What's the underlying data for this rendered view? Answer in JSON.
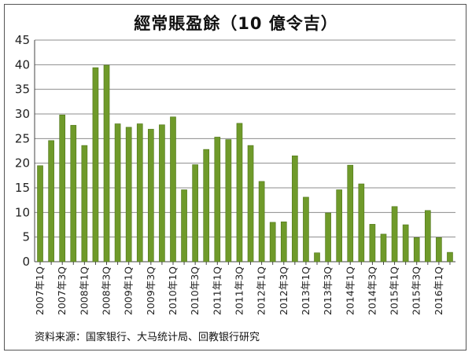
{
  "chart_data": {
    "type": "bar",
    "title": "經常賬盈餘（10 億令吉）",
    "source": "资料来源：国家银行、大马统计局、回教银行研究",
    "ylim": [
      0,
      45
    ],
    "yticks": [
      0,
      5,
      10,
      15,
      20,
      25,
      30,
      35,
      40,
      45
    ],
    "grid": true,
    "legend": "none",
    "bar_color": "#6f9a2a",
    "categories": [
      "2007年1Q",
      "2007年2Q",
      "2007年3Q",
      "2007年4Q",
      "2008年1Q",
      "2008年2Q",
      "2008年3Q",
      "2008年4Q",
      "2009年1Q",
      "2009年2Q",
      "2009年3Q",
      "2009年4Q",
      "2010年1Q",
      "2010年2Q",
      "2010年3Q",
      "2010年4Q",
      "2011年1Q",
      "2011年2Q",
      "2011年3Q",
      "2011年4Q",
      "2012年1Q",
      "2012年2Q",
      "2012年3Q",
      "2012年4Q",
      "2013年1Q",
      "2013年2Q",
      "2013年3Q",
      "2013年4Q",
      "2014年1Q",
      "2014年2Q",
      "2014年3Q",
      "2014年4Q",
      "2015年1Q",
      "2015年2Q",
      "2015年3Q",
      "2015年4Q",
      "2016年1Q",
      "2016年2Q"
    ],
    "visible_tick_labels": [
      "2007年1Q",
      "2007年3Q",
      "2008年1Q",
      "2008年3Q",
      "2009年1Q",
      "2009年3Q",
      "2010年1Q",
      "2010年3Q",
      "2011年1Q",
      "2011年3Q",
      "2012年1Q",
      "2012年3Q",
      "2013年1Q",
      "2013年3Q",
      "2014年1Q",
      "2014年3Q",
      "2015年1Q",
      "2015年3Q",
      "2016年1Q"
    ],
    "values": [
      19.5,
      24.6,
      29.8,
      27.7,
      23.6,
      39.4,
      39.9,
      28.0,
      27.3,
      28.0,
      26.9,
      27.8,
      29.4,
      14.6,
      19.7,
      22.8,
      25.3,
      24.8,
      28.1,
      23.6,
      16.3,
      8.0,
      8.1,
      21.5,
      13.1,
      1.8,
      9.9,
      14.6,
      19.6,
      15.8,
      7.6,
      5.6,
      11.2,
      7.5,
      4.9,
      10.4,
      4.9,
      1.9
    ]
  }
}
